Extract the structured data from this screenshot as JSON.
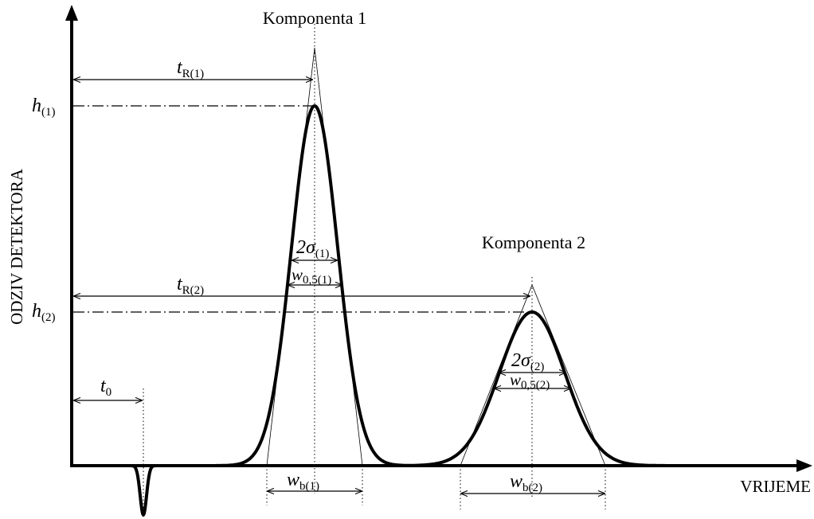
{
  "peaks": {
    "peak1": "Komponenta 1",
    "peak2": "Komponenta 2"
  },
  "axes": {
    "y": "ODZIV DETEKTORA",
    "x": "VRIJEME"
  },
  "labels": {
    "tR1": {
      "base": "t",
      "sub": "R(1)"
    },
    "h1": {
      "base": "h",
      "sub": "(1)"
    },
    "sigma1": {
      "base": "2σ",
      "sub": "(1)"
    },
    "w051": {
      "base": "w",
      "sub": "0,5(1)"
    },
    "tR2": {
      "base": "t",
      "sub": "R(2)"
    },
    "h2": {
      "base": "h",
      "sub": "(2)"
    },
    "sigma2": {
      "base": "2σ",
      "sub": "(2)"
    },
    "w052": {
      "base": "w",
      "sub": "0,5(2)"
    },
    "t0": {
      "base": "t",
      "sub": "0"
    },
    "wb1": {
      "base": "w",
      "sub": "b(1)"
    },
    "wb2": {
      "base": "w",
      "sub": "b(2)"
    }
  }
}
